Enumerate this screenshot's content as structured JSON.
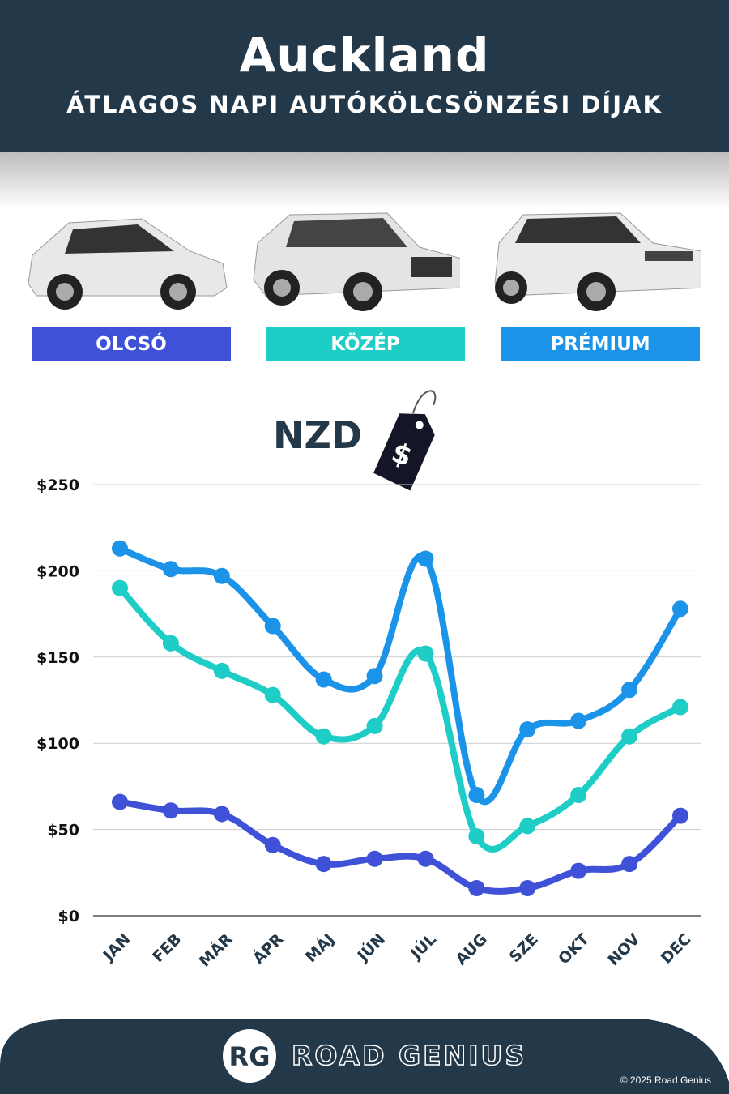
{
  "header": {
    "title": "Auckland",
    "subtitle": "ÁTLAGOS NAPI AUTÓKÖLCSÖNZÉSI DÍJAK"
  },
  "categories": [
    {
      "label": "OLCSÓ",
      "color": "#3f51d6"
    },
    {
      "label": "KÖZÉP",
      "color": "#1ecdc6"
    },
    {
      "label": "PRÉMIUM",
      "color": "#1a93e8"
    }
  ],
  "currency": "NZD",
  "price_tag_icon": "price-tag-dollar-icon",
  "chart_data": {
    "type": "line",
    "categories": [
      "JAN",
      "FEB",
      "MÁR",
      "ÁPR",
      "MÁJ",
      "JÚN",
      "JÚL",
      "AUG",
      "SZE",
      "OKT",
      "NOV",
      "DEC"
    ],
    "ylim": [
      0,
      250
    ],
    "yticks": [
      "$0",
      "$50",
      "$100",
      "$150",
      "$200",
      "$250"
    ],
    "ytick_values": [
      0,
      50,
      100,
      150,
      200,
      250
    ],
    "grid": true,
    "series": [
      {
        "name": "OLCSÓ",
        "color": "#3f51d6",
        "values": [
          66,
          61,
          59,
          41,
          30,
          33,
          33,
          16,
          16,
          26,
          30,
          58
        ]
      },
      {
        "name": "KÖZÉP",
        "color": "#1ecdc6",
        "values": [
          190,
          158,
          142,
          128,
          104,
          110,
          152,
          46,
          52,
          70,
          104,
          121
        ]
      },
      {
        "name": "PRÉMIUM",
        "color": "#1a93e8",
        "values": [
          213,
          201,
          197,
          168,
          137,
          139,
          207,
          70,
          108,
          113,
          131,
          178
        ]
      }
    ]
  },
  "footer": {
    "brand": "ROAD GENIUS",
    "logo": "RG",
    "copyright": "© 2025 Road Genius"
  }
}
